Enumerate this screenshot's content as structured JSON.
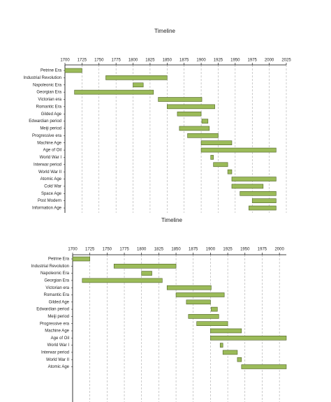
{
  "chart_data": [
    {
      "type": "gantt",
      "title": "Timeline",
      "categories": [
        "Petrine Era",
        "Industrial Revolution",
        "Napoleonic Era",
        "Georgian Era",
        "Victorian era",
        "Romantic Era",
        "Gilded Age",
        "Edwardian period",
        "Meiji period",
        "Progressive era",
        "Machine Age",
        "Age of Oil",
        "World War I",
        "Interwar period",
        "World War II",
        "Atomic Age",
        "Cold War",
        "Space Age",
        "Post Modern",
        "Information Age"
      ],
      "starts": [
        1700,
        1760,
        1800,
        1714,
        1837,
        1850,
        1865,
        1901,
        1868,
        1880,
        1900,
        1900,
        1914,
        1918,
        1939,
        1945,
        1945,
        1957,
        1975,
        1970
      ],
      "ends": [
        1725,
        1850,
        1815,
        1830,
        1901,
        1920,
        1900,
        1910,
        1912,
        1925,
        1945,
        2010,
        1918,
        1939,
        1945,
        2010,
        1991,
        2010,
        2010,
        2010
      ],
      "xlim": [
        1700,
        2025
      ],
      "xticks": [
        1700,
        1725,
        1750,
        1775,
        1800,
        1825,
        1850,
        1875,
        1900,
        1925,
        1950,
        1975,
        2000,
        2025
      ],
      "color": "#9bbb59",
      "grid": true
    },
    {
      "type": "gantt",
      "title": "Timeline",
      "categories": [
        "Petrine Era",
        "Industrial Revolution",
        "Napoleonic Era",
        "Georgian Era",
        "Victorian era",
        "Romantic Era",
        "Gilded Age",
        "Edwardian period",
        "Meiji period",
        "Progressive era",
        "Machine Age",
        "Age of Oil",
        "World War I",
        "Interwar period",
        "World War II",
        "Atomic Age"
      ],
      "starts": [
        1700,
        1760,
        1800,
        1714,
        1837,
        1850,
        1865,
        1901,
        1868,
        1880,
        1900,
        1900,
        1914,
        1918,
        1939,
        1945
      ],
      "ends": [
        1725,
        1850,
        1815,
        1830,
        1901,
        1920,
        1900,
        1910,
        1912,
        1925,
        1945,
        2010,
        1918,
        1939,
        1945,
        2010
      ],
      "xlim": [
        1700,
        2010
      ],
      "xticks": [
        1700,
        1725,
        1750,
        1775,
        1800,
        1825,
        1850,
        1875,
        1900,
        1925,
        1950,
        1975,
        2000
      ],
      "color": "#9bbb59",
      "grid": true
    }
  ]
}
